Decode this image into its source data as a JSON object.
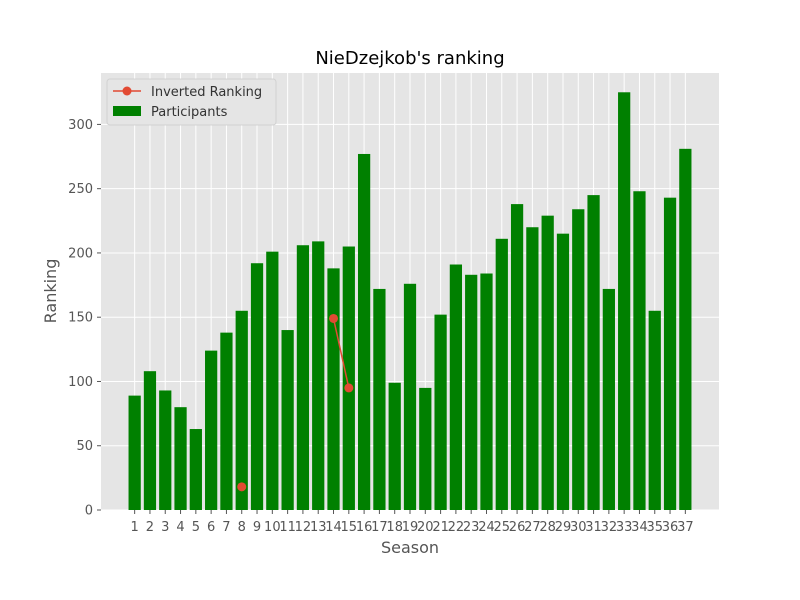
{
  "chart_data": {
    "type": "bar",
    "title": "NieDzejkob's ranking",
    "xlabel": "Season",
    "ylabel": "Ranking",
    "ylim": [
      0,
      340
    ],
    "xlim": [
      -1.2,
      39.2
    ],
    "yticks": [
      0,
      50,
      100,
      150,
      200,
      250,
      300
    ],
    "grid": true,
    "legend_placement": "upper-left",
    "categories": [
      1,
      2,
      3,
      4,
      5,
      6,
      7,
      8,
      9,
      10,
      11,
      12,
      13,
      14,
      15,
      16,
      17,
      18,
      19,
      20,
      21,
      22,
      23,
      24,
      25,
      26,
      27,
      28,
      29,
      30,
      31,
      32,
      33,
      34,
      35,
      36,
      37
    ],
    "series": [
      {
        "name": "Participants",
        "kind": "bar",
        "color": "#008000",
        "values": [
          89,
          108,
          93,
          80,
          63,
          124,
          138,
          155,
          192,
          201,
          140,
          206,
          209,
          188,
          205,
          277,
          172,
          99,
          176,
          95,
          152,
          191,
          183,
          184,
          211,
          238,
          220,
          229,
          215,
          234,
          245,
          172,
          325,
          248,
          155,
          243,
          281
        ]
      },
      {
        "name": "Inverted Ranking",
        "kind": "line",
        "color": "#e24a33",
        "values": [
          null,
          null,
          null,
          null,
          null,
          null,
          null,
          18,
          null,
          null,
          null,
          null,
          null,
          149,
          95,
          null,
          null,
          null,
          null,
          null,
          null,
          null,
          null,
          null,
          null,
          null,
          null,
          null,
          null,
          null,
          null,
          null,
          null,
          null,
          null,
          null,
          null
        ]
      }
    ]
  }
}
